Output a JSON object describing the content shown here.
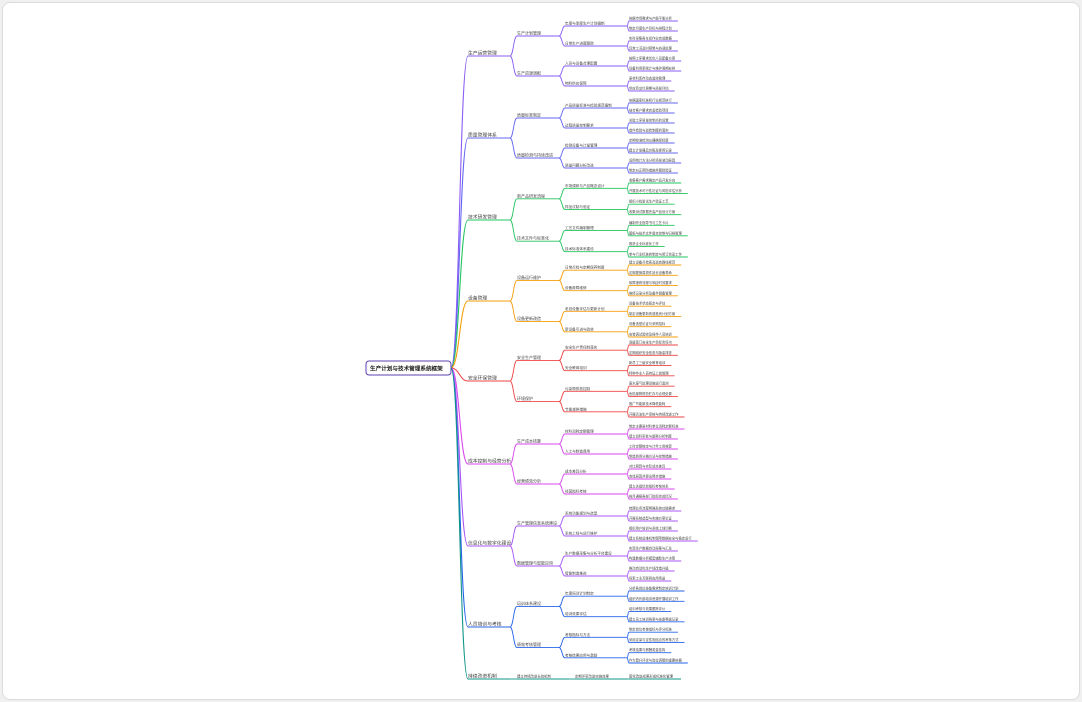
{
  "mindmap": {
    "root": "生产计划与技术管理系统框架",
    "branches": [
      {
        "label": "生产运营管理",
        "color": "#8a5cf6",
        "children": [
          {
            "label": "生产计划管理",
            "children": [
              {
                "label": "年度与季度生产计划编制",
                "children": [
                  "依据市场需求与产能平衡分析",
                  "制定月度生产目标与排程计划"
                ]
              },
              {
                "label": "日常生产进度跟踪",
                "children": [
                  "实时采集各车间作业完成数据",
                  "异常工况及时预警与协调处理"
                ]
              }
            ]
          },
          {
            "label": "生产资源调配",
            "children": [
              {
                "label": "人员与设备合理配置",
                "children": [
                  "按照工序要求优化人员配备方案",
                  "设备利用率统计与维护周期安排"
                ]
              },
              {
                "label": "物料供应保障",
                "children": [
                  "原材料库存动态监控管理",
                  "供应商交付周期与质量评估"
                ]
              }
            ]
          }
        ]
      },
      {
        "label": "质量管理体系",
        "color": "#6366f1",
        "children": [
          {
            "label": "质量标准制定",
            "children": [
              {
                "label": "产品质量标准与检验规范编制",
                "children": [
                  "依据国家标准和行业规范执行",
                  "结合客户要求完善检验项目"
                ]
              },
              {
                "label": "过程质量控制要求",
                "children": [
                  "关键工序质量控制点的设置",
                  "首件检验与巡检制度的落实"
                ]
              }
            ]
          },
          {
            "label": "质量检测与持续改进",
            "children": [
              {
                "label": "检测设备与计量管理",
                "children": [
                  "定期校准检测仪器确保精度",
                  "建立计量器具台账及使用记录"
                ]
              },
              {
                "label": "质量问题分析改进",
                "children": [
                  "运用统计方法分析质量波动原因",
                  "制定纠正预防措施并跟踪验证"
                ]
              }
            ]
          }
        ]
      },
      {
        "label": "技术研发管理",
        "color": "#22c55e",
        "children": [
          {
            "label": "新产品研发流程",
            "children": [
              {
                "label": "市场调研与产品概念设计",
                "children": [
                  "收集客户需求确定产品开发方向",
                  "开展技术可行性论证与风险评估分析"
                ]
              },
              {
                "label": "样品试制与验证",
                "children": [
                  "组织小批量试生产验证工艺",
                  "收集测试数据完善产品设计方案"
                ]
              }
            ]
          },
          {
            "label": "技术文件与标准化",
            "children": [
              {
                "label": "工艺文件编制管理",
                "children": [
                  "编制作业指导书与工艺卡片",
                  "图纸与技术文件版本控制与归档管理"
                ]
              },
              {
                "label": "技术标准体系建设",
                "children": [
                  "推进企业标准化工作",
                  "参与行业标准的制定与修订完善工作"
                ]
              }
            ]
          }
        ]
      },
      {
        "label": "设备管理",
        "color": "#f59e0b",
        "children": [
          {
            "label": "设备运行维护",
            "children": [
              {
                "label": "日常点检与定期保养制度",
                "children": [
                  "建立设备点检表及巡查路线规范",
                  "定期更换易损件延长设备寿命"
                ]
              },
              {
                "label": "设备故障维修",
                "children": [
                  "故障报修流程与响应时效要求",
                  "维修记录分析及备件储备管理"
                ]
              }
            ]
          },
          {
            "label": "设备更新改造",
            "children": [
              {
                "label": "老旧设备评估与更新计划",
                "children": [
                  "设备技术状态鉴定与评估",
                  "制定设备更新改造投资计划方案"
                ]
              },
              {
                "label": "新设备引进与验收",
                "children": [
                  "设备选型论证与采购招标",
                  "安装调试验收及操作人员培训"
                ]
              }
            ]
          }
        ]
      },
      {
        "label": "安全环保管理",
        "color": "#ef4444",
        "children": [
          {
            "label": "安全生产管理",
            "children": [
              {
                "label": "安全生产责任制落实",
                "children": [
                  "逐级签订安全生产目标责任书",
                  "定期组织安全检查与隐患排查"
                ]
              },
              {
                "label": "安全教育培训",
                "children": [
                  "新员工三级安全教育培训",
                  "特种作业人员持证上岗管理"
                ]
              }
            ]
          },
          {
            "label": "环境保护",
            "children": [
              {
                "label": "污染物排放控制",
                "children": [
                  "废水废气处理设施运行监测",
                  "危险废物规范贮存与合规处置"
                ]
              },
              {
                "label": "节能减排措施",
                "children": [
                  "推广节能新技术降低能耗",
                  "开展清洁生产审核与持续改进工作"
                ]
              }
            ]
          }
        ]
      },
      {
        "label": "成本控制与经营分析",
        "color": "#d946ef",
        "children": [
          {
            "label": "生产成本核算",
            "children": [
              {
                "label": "材料消耗定额管理",
                "children": [
                  "制定主要原材料单位消耗定额标准",
                  "建立领料审批与超耗分析制度"
                ]
              },
              {
                "label": "人工与制造费用",
                "children": [
                  "工时定额核定与计件工资核算",
                  "制造费用分摊方法与控制措施"
                ]
              }
            ]
          },
          {
            "label": "经营绩效分析",
            "children": [
              {
                "label": "成本差异分析",
                "children": [
                  "对比预算与实际成本差异",
                  "查找原因并提出降本措施"
                ]
              },
              {
                "label": "经营指标考核",
                "children": [
                  "建立关键绩效指标考核体系",
                  "按月通报各部门指标完成情况"
                ]
              }
            ]
          }
        ]
      },
      {
        "label": "信息化与数字化建设",
        "color": "#a855f7",
        "children": [
          {
            "label": "生产管理信息系统建设",
            "children": [
              {
                "label": "系统功能规划与选型",
                "children": [
                  "梳理业务流程明确系统功能需求",
                  "开展系统选型与实施方案论证"
                ]
              },
              {
                "label": "系统上线与运行维护",
                "children": [
                  "组织用户培训与系统上线切换",
                  "建立系统运维机制保障数据安全与稳定运行"
                ]
              }
            ]
          },
          {
            "label": "数据管理与智能应用",
            "children": [
              {
                "label": "生产数据采集与分析平台建设",
                "children": [
                  "实现生产数据自动采集与汇总",
                  "构建数据分析模型辅助生产决策"
                ]
              },
              {
                "label": "智能制造推进",
                "children": [
                  "推动自动化生产线改造升级",
                  "探索工业互联网应用场景"
                ]
              }
            ]
          }
        ]
      },
      {
        "label": "人员培训与考核",
        "color": "#2563eb",
        "children": [
          {
            "label": "培训体系建设",
            "children": [
              {
                "label": "年度培训计划制定",
                "children": [
                  "分析各岗位技能需求制定培训计划",
                  "组织内外部培训资源开展培训工作"
                ]
              },
              {
                "label": "培训效果评估",
                "children": [
                  "培训考核与效果跟踪评价",
                  "建立员工培训档案与技能等级记录"
                ]
              }
            ]
          },
          {
            "label": "绩效考核管理",
            "children": [
              {
                "label": "考核指标与方法",
                "children": [
                  "制定岗位考核指标与评分标准",
                  "采用定量与定性相结合的考核方式"
                ]
              },
              {
                "label": "考核结果应用与激励",
                "children": [
                  "考核结果与薪酬奖金挂钩",
                  "作为晋升评优与岗位调整的重要依据"
                ]
              }
            ]
          }
        ]
      },
      {
        "label": "持续改进机制",
        "color": "#0d9488",
        "single": [
          "建立持续改进长效机制",
          "定期评审改进实施效果",
          "固化改进成果形成标准化管理"
        ]
      }
    ]
  }
}
